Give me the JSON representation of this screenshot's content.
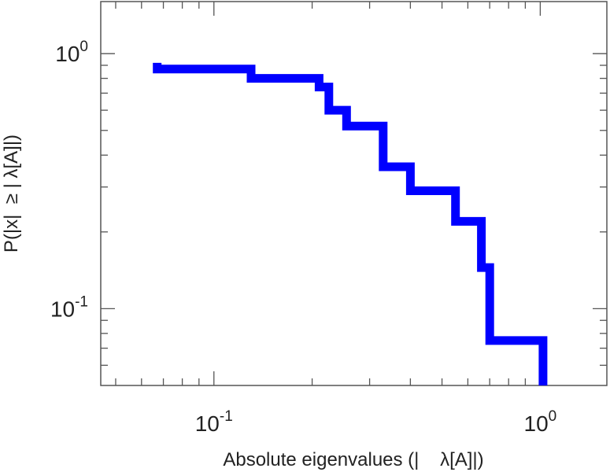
{
  "chart_data": {
    "type": "line",
    "subtype": "step",
    "title": "",
    "xlabel": "Absolute eigenvalues (|    λ[A]|)",
    "ylabel": "P(|x|  ≥ | λ[A]|)",
    "xscale": "log",
    "yscale": "log",
    "xlim": [
      0.045,
      1.6
    ],
    "ylim": [
      0.05,
      1.6
    ],
    "grid": false,
    "legend": "none",
    "series": [
      {
        "color": "#0000ff",
        "x": [
          0.067,
          0.067,
          0.13,
          0.13,
          0.21,
          0.21,
          0.225,
          0.225,
          0.255,
          0.255,
          0.33,
          0.33,
          0.4,
          0.4,
          0.55,
          0.55,
          0.66,
          0.66,
          0.7,
          0.7,
          1.02,
          1.02
        ],
        "y": [
          0.92,
          0.87,
          0.87,
          0.8,
          0.8,
          0.74,
          0.74,
          0.6,
          0.6,
          0.52,
          0.52,
          0.36,
          0.36,
          0.29,
          0.29,
          0.22,
          0.22,
          0.145,
          0.145,
          0.075,
          0.075,
          0.05
        ]
      }
    ],
    "x_ticks": [
      {
        "value": 0.1,
        "base": "10",
        "exp": "-1"
      },
      {
        "value": 1,
        "base": "10",
        "exp": "0"
      }
    ],
    "y_ticks": [
      {
        "value": 0.1,
        "base": "10",
        "exp": "-1"
      },
      {
        "value": 1,
        "base": "10",
        "exp": "0"
      }
    ]
  }
}
